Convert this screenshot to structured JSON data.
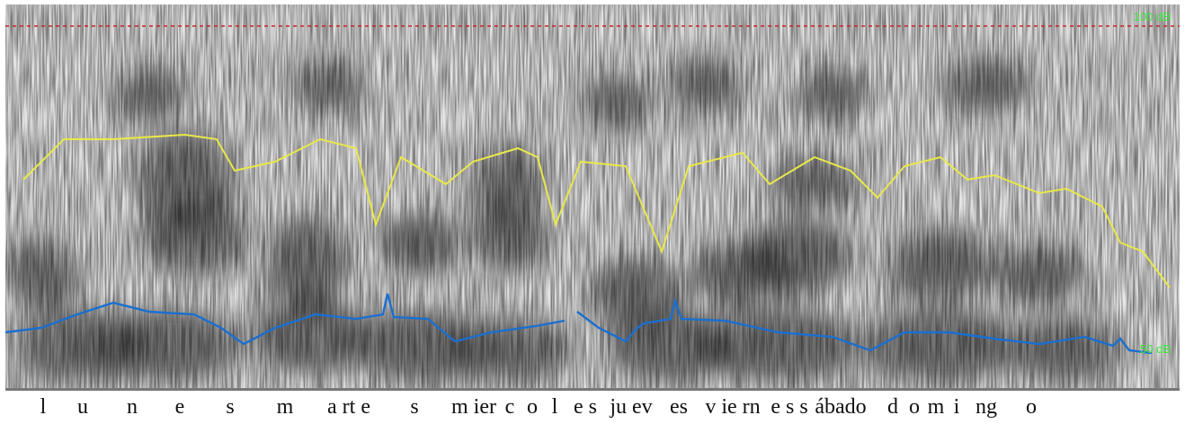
{
  "labels": {
    "db_top": "100 dB",
    "db_bottom": "50 dB"
  },
  "colors": {
    "reference_line": "#cc2222",
    "upper_contour": "#e8e84a",
    "lower_contour": "#1a7fe0",
    "db_label": "#39e639"
  },
  "transcript": [
    {
      "t": "l"
    },
    {
      "t": "u"
    },
    {
      "t": "n"
    },
    {
      "t": "e"
    },
    {
      "t": "s"
    },
    {
      "t": "m"
    },
    {
      "t": "a rt e"
    },
    {
      "t": "s"
    },
    {
      "t": "m ier"
    },
    {
      "t": "c"
    },
    {
      "t": "o"
    },
    {
      "t": "l"
    },
    {
      "t": "e s"
    },
    {
      "t": "ju ev"
    },
    {
      "t": "es"
    },
    {
      "t": "v ie rn"
    },
    {
      "t": "e s s"
    },
    {
      "t": "ábado"
    },
    {
      "t": "d"
    },
    {
      "t": "o"
    },
    {
      "t": "m"
    },
    {
      "t": "i"
    },
    {
      "t": "ng"
    },
    {
      "t": "o"
    }
  ]
}
